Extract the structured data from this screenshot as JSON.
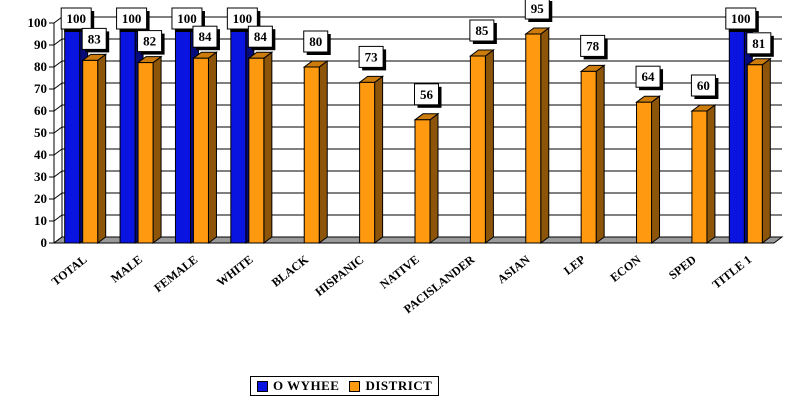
{
  "chart_data": {
    "type": "bar",
    "title": "",
    "xlabel": "",
    "ylabel": "",
    "ylim": [
      0,
      100
    ],
    "yticks": [
      "0",
      "10",
      "20",
      "30",
      "40",
      "50",
      "60",
      "70",
      "80",
      "90",
      "100"
    ],
    "grid": true,
    "legend_position": "bottom",
    "categories": [
      "TOTAL",
      "MALE",
      "FEMALE",
      "WHITE",
      "BLACK",
      "HISPANIC",
      "NATIVE",
      "PACISLANDER",
      "ASIAN",
      "LEP",
      "ECON",
      "SPED",
      "TITLE 1"
    ],
    "series": [
      {
        "name": "O WYHEE",
        "color": "#0a14e0",
        "values": [
          100,
          100,
          100,
          100,
          null,
          null,
          null,
          null,
          null,
          null,
          null,
          null,
          100
        ]
      },
      {
        "name": "DISTRICT",
        "color": "#ff9a10",
        "values": [
          83,
          82,
          84,
          84,
          80,
          73,
          56,
          85,
          95,
          78,
          64,
          60,
          81
        ]
      }
    ]
  }
}
